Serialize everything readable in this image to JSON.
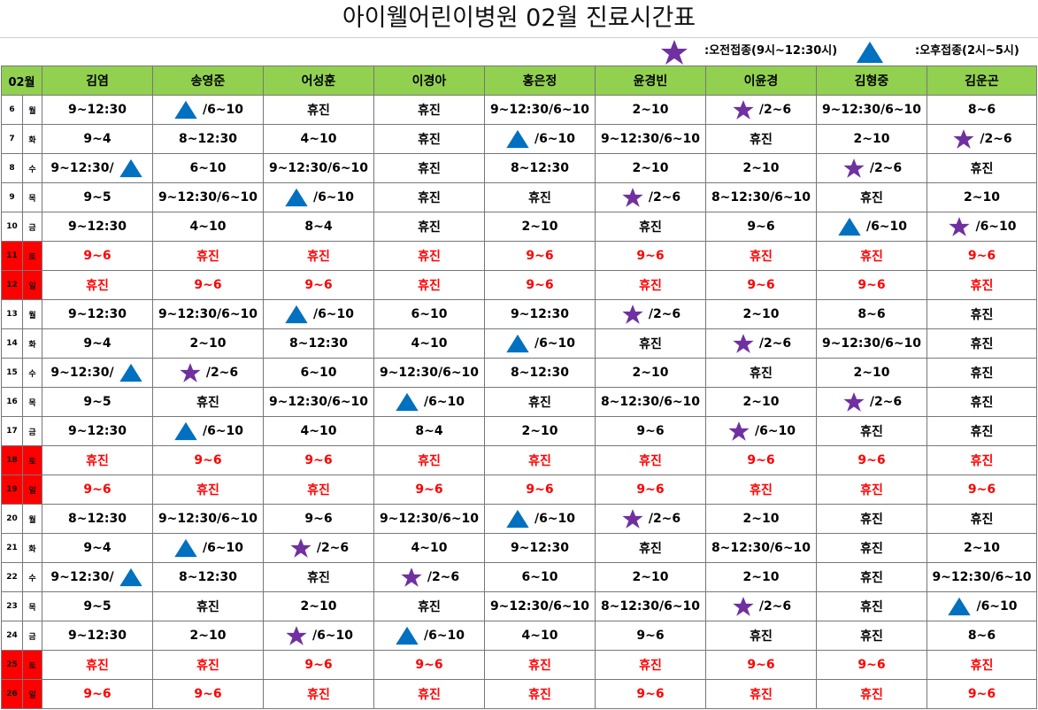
{
  "title": "아이웰어린이병원  02월  진료시간표",
  "legend": {
    "am_label": ":오전접종(9시~12:30시)",
    "pm_label": ":오후접종(2시~5시)"
  },
  "colors": {
    "header_bg": "#92d050",
    "weekend_bg": "#ff0000",
    "weekend_text": "#ff0000",
    "star": "#7030a0",
    "triangle": "#0070c0"
  },
  "table": {
    "month_label": "02월",
    "doctors": [
      "김염",
      "송영준",
      "어성훈",
      "이경아",
      "홍은정",
      "윤경빈",
      "이윤경",
      "김형중",
      "김운곤"
    ],
    "rows": [
      {
        "day": "6",
        "weekday": "월",
        "weekend": false,
        "cells": [
          {
            "text": "9~12:30"
          },
          {
            "icon": "triangle",
            "text": "/6~10"
          },
          {
            "text": "휴진"
          },
          {
            "text": "휴진"
          },
          {
            "text": "9~12:30/6~10"
          },
          {
            "text": "2~10"
          },
          {
            "icon": "star",
            "text": "/2~6"
          },
          {
            "text": "9~12:30/6~10"
          },
          {
            "text": "8~6"
          }
        ]
      },
      {
        "day": "7",
        "weekday": "화",
        "weekend": false,
        "cells": [
          {
            "text": "9~4"
          },
          {
            "text": "8~12:30"
          },
          {
            "text": "4~10"
          },
          {
            "text": "휴진"
          },
          {
            "icon": "triangle",
            "text": "/6~10"
          },
          {
            "text": "9~12:30/6~10"
          },
          {
            "text": "휴진"
          },
          {
            "text": "2~10"
          },
          {
            "icon": "star",
            "text": "/2~6"
          }
        ]
      },
      {
        "day": "8",
        "weekday": "수",
        "weekend": false,
        "cells": [
          {
            "text": "9~12:30/",
            "icon": "triangle",
            "icon_after": true
          },
          {
            "text": "6~10"
          },
          {
            "text": "9~12:30/6~10"
          },
          {
            "text": "휴진"
          },
          {
            "text": "8~12:30"
          },
          {
            "text": "2~10"
          },
          {
            "text": "2~10"
          },
          {
            "icon": "star",
            "text": "/2~6"
          },
          {
            "text": "휴진"
          }
        ]
      },
      {
        "day": "9",
        "weekday": "목",
        "weekend": false,
        "cells": [
          {
            "text": "9~5"
          },
          {
            "text": "9~12:30/6~10"
          },
          {
            "icon": "triangle",
            "text": "/6~10"
          },
          {
            "text": "휴진"
          },
          {
            "text": "휴진"
          },
          {
            "icon": "star",
            "text": "/2~6"
          },
          {
            "text": "8~12:30/6~10"
          },
          {
            "text": "휴진"
          },
          {
            "text": "2~10"
          }
        ]
      },
      {
        "day": "10",
        "weekday": "금",
        "weekend": false,
        "cells": [
          {
            "text": "9~12:30"
          },
          {
            "text": "4~10"
          },
          {
            "text": "8~4"
          },
          {
            "text": "휴진"
          },
          {
            "text": "2~10"
          },
          {
            "text": "휴진"
          },
          {
            "text": "9~6"
          },
          {
            "icon": "triangle",
            "text": "/6~10"
          },
          {
            "icon": "star",
            "text": "/6~10"
          }
        ]
      },
      {
        "day": "11",
        "weekday": "토",
        "weekend": true,
        "cells": [
          {
            "text": "9~6"
          },
          {
            "text": "휴진"
          },
          {
            "text": "휴진"
          },
          {
            "text": "휴진"
          },
          {
            "text": "9~6"
          },
          {
            "text": "9~6"
          },
          {
            "text": "휴진"
          },
          {
            "text": "휴진"
          },
          {
            "text": "9~6"
          }
        ]
      },
      {
        "day": "12",
        "weekday": "일",
        "weekend": true,
        "cells": [
          {
            "text": "휴진"
          },
          {
            "text": "9~6"
          },
          {
            "text": "9~6"
          },
          {
            "text": "휴진"
          },
          {
            "text": "9~6"
          },
          {
            "text": "휴진"
          },
          {
            "text": "9~6"
          },
          {
            "text": "9~6"
          },
          {
            "text": "휴진"
          }
        ]
      },
      {
        "day": "13",
        "weekday": "월",
        "weekend": false,
        "cells": [
          {
            "text": "9~12:30"
          },
          {
            "text": "9~12:30/6~10"
          },
          {
            "icon": "triangle",
            "text": "/6~10"
          },
          {
            "text": "6~10"
          },
          {
            "text": "9~12:30"
          },
          {
            "icon": "star",
            "text": "/2~6"
          },
          {
            "text": "2~10"
          },
          {
            "text": "8~6"
          },
          {
            "text": "휴진"
          }
        ]
      },
      {
        "day": "14",
        "weekday": "화",
        "weekend": false,
        "cells": [
          {
            "text": "9~4"
          },
          {
            "text": "2~10"
          },
          {
            "text": "8~12:30"
          },
          {
            "text": "4~10"
          },
          {
            "icon": "triangle",
            "text": "/6~10"
          },
          {
            "text": "휴진"
          },
          {
            "icon": "star",
            "text": "/2~6"
          },
          {
            "text": "9~12:30/6~10"
          },
          {
            "text": "휴진"
          }
        ]
      },
      {
        "day": "15",
        "weekday": "수",
        "weekend": false,
        "cells": [
          {
            "text": "9~12:30/",
            "icon": "triangle",
            "icon_after": true
          },
          {
            "icon": "star",
            "text": "/2~6"
          },
          {
            "text": "6~10"
          },
          {
            "text": "9~12:30/6~10"
          },
          {
            "text": "8~12:30"
          },
          {
            "text": "2~10"
          },
          {
            "text": "휴진"
          },
          {
            "text": "2~10"
          },
          {
            "text": "휴진"
          }
        ]
      },
      {
        "day": "16",
        "weekday": "목",
        "weekend": false,
        "cells": [
          {
            "text": "9~5"
          },
          {
            "text": "휴진"
          },
          {
            "text": "9~12:30/6~10"
          },
          {
            "icon": "triangle",
            "text": "/6~10"
          },
          {
            "text": "휴진"
          },
          {
            "text": "8~12:30/6~10"
          },
          {
            "text": "2~10"
          },
          {
            "icon": "star",
            "text": "/2~6"
          },
          {
            "text": "휴진"
          }
        ]
      },
      {
        "day": "17",
        "weekday": "금",
        "weekend": false,
        "cells": [
          {
            "text": "9~12:30"
          },
          {
            "icon": "triangle",
            "text": "/6~10"
          },
          {
            "text": "4~10"
          },
          {
            "text": "8~4"
          },
          {
            "text": "2~10"
          },
          {
            "text": "9~6"
          },
          {
            "icon": "star",
            "text": "/6~10"
          },
          {
            "text": "휴진"
          },
          {
            "text": "휴진"
          }
        ]
      },
      {
        "day": "18",
        "weekday": "토",
        "weekend": true,
        "cells": [
          {
            "text": "휴진"
          },
          {
            "text": "9~6"
          },
          {
            "text": "9~6"
          },
          {
            "text": "휴진"
          },
          {
            "text": "휴진"
          },
          {
            "text": "휴진"
          },
          {
            "text": "9~6"
          },
          {
            "text": "9~6"
          },
          {
            "text": "휴진"
          }
        ]
      },
      {
        "day": "19",
        "weekday": "일",
        "weekend": true,
        "cells": [
          {
            "text": "9~6"
          },
          {
            "text": "휴진"
          },
          {
            "text": "휴진"
          },
          {
            "text": "9~6"
          },
          {
            "text": "9~6"
          },
          {
            "text": "9~6"
          },
          {
            "text": "휴진"
          },
          {
            "text": "휴진"
          },
          {
            "text": "9~6"
          }
        ]
      },
      {
        "day": "20",
        "weekday": "월",
        "weekend": false,
        "cells": [
          {
            "text": "8~12:30"
          },
          {
            "text": "9~12:30/6~10"
          },
          {
            "text": "9~6"
          },
          {
            "text": "9~12:30/6~10"
          },
          {
            "icon": "triangle",
            "text": "/6~10"
          },
          {
            "icon": "star",
            "text": "/2~6"
          },
          {
            "text": "2~10"
          },
          {
            "text": "휴진"
          },
          {
            "text": "휴진"
          }
        ]
      },
      {
        "day": "21",
        "weekday": "화",
        "weekend": false,
        "cells": [
          {
            "text": "9~4"
          },
          {
            "icon": "triangle",
            "text": "/6~10"
          },
          {
            "icon": "star",
            "text": "/2~6"
          },
          {
            "text": "4~10"
          },
          {
            "text": "9~12:30"
          },
          {
            "text": "휴진"
          },
          {
            "text": "8~12:30/6~10"
          },
          {
            "text": "휴진"
          },
          {
            "text": "2~10"
          }
        ]
      },
      {
        "day": "22",
        "weekday": "수",
        "weekend": false,
        "cells": [
          {
            "text": "9~12:30/",
            "icon": "triangle",
            "icon_after": true
          },
          {
            "text": "8~12:30"
          },
          {
            "text": "휴진"
          },
          {
            "icon": "star",
            "text": "/2~6"
          },
          {
            "text": "6~10"
          },
          {
            "text": "2~10"
          },
          {
            "text": "2~10"
          },
          {
            "text": "휴진"
          },
          {
            "text": "9~12:30/6~10"
          }
        ]
      },
      {
        "day": "23",
        "weekday": "목",
        "weekend": false,
        "cells": [
          {
            "text": "9~5"
          },
          {
            "text": "휴진"
          },
          {
            "text": "2~10"
          },
          {
            "text": "휴진"
          },
          {
            "text": "9~12:30/6~10"
          },
          {
            "text": "8~12:30/6~10"
          },
          {
            "icon": "star",
            "text": "/2~6"
          },
          {
            "text": "휴진"
          },
          {
            "icon": "triangle",
            "text": "/6~10"
          }
        ]
      },
      {
        "day": "24",
        "weekday": "금",
        "weekend": false,
        "cells": [
          {
            "text": "9~12:30"
          },
          {
            "text": "2~10"
          },
          {
            "icon": "star",
            "text": "/6~10"
          },
          {
            "icon": "triangle",
            "text": "/6~10"
          },
          {
            "text": "4~10"
          },
          {
            "text": "9~6"
          },
          {
            "text": "휴진"
          },
          {
            "text": "휴진"
          },
          {
            "text": "8~6"
          }
        ]
      },
      {
        "day": "25",
        "weekday": "토",
        "weekend": true,
        "cells": [
          {
            "text": "휴진"
          },
          {
            "text": "휴진"
          },
          {
            "text": "9~6"
          },
          {
            "text": "9~6"
          },
          {
            "text": "휴진"
          },
          {
            "text": "휴진"
          },
          {
            "text": "9~6"
          },
          {
            "text": "9~6"
          },
          {
            "text": "휴진"
          }
        ]
      },
      {
        "day": "26",
        "weekday": "일",
        "weekend": true,
        "cells": [
          {
            "text": "9~6"
          },
          {
            "text": "9~6"
          },
          {
            "text": "휴진"
          },
          {
            "text": "휴진"
          },
          {
            "text": "휴진"
          },
          {
            "text": "9~6"
          },
          {
            "text": "휴진"
          },
          {
            "text": "휴진"
          },
          {
            "text": "9~6"
          }
        ]
      }
    ]
  }
}
